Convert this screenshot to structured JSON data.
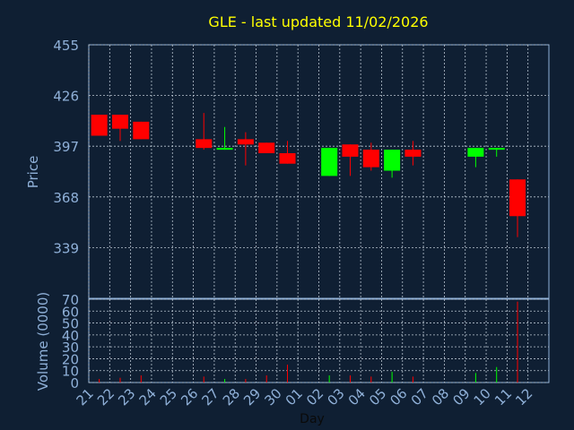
{
  "chart_data": {
    "type": "candlestick",
    "title": "GLE - last updated 11/02/2026",
    "ylabel": "Price",
    "volume_ylabel": "Volume (0000)",
    "xlabel": "Day",
    "ylim": [
      310,
      455
    ],
    "yticks": [
      455,
      426,
      397,
      368,
      339
    ],
    "volume_ylim": [
      0,
      70
    ],
    "volume_yticks": [
      0,
      10,
      20,
      30,
      40,
      50,
      60,
      70
    ],
    "x_ticks": [
      "21",
      "22",
      "23",
      "24",
      "25",
      "26",
      "27",
      "28",
      "29",
      "30",
      "01",
      "02",
      "03",
      "04",
      "05",
      "06",
      "07",
      "08",
      "09",
      "10",
      "11",
      "12"
    ],
    "grid": true,
    "colors": {
      "up": "#00ff00",
      "down": "#ff0000",
      "title": "#ffff00",
      "axis_text": "#8fb0d8",
      "grid": "#b8c4d0"
    },
    "candles": [
      {
        "day": "21",
        "open": 415,
        "close": 403,
        "high": 415,
        "low": 403,
        "volume": 3
      },
      {
        "day": "22",
        "open": 415,
        "close": 407,
        "high": 415,
        "low": 400,
        "volume": 4
      },
      {
        "day": "23",
        "open": 411,
        "close": 401,
        "high": 411,
        "low": 401,
        "volume": 6
      },
      {
        "day": "26",
        "open": 401,
        "close": 396,
        "high": 416,
        "low": 395,
        "volume": 5
      },
      {
        "day": "27",
        "open": 395,
        "close": 396,
        "high": 408,
        "low": 395,
        "volume": 3
      },
      {
        "day": "28",
        "open": 401,
        "close": 398,
        "high": 405,
        "low": 386,
        "volume": 3
      },
      {
        "day": "29",
        "open": 399,
        "close": 393,
        "high": 399,
        "low": 393,
        "volume": 6
      },
      {
        "day": "30",
        "open": 393,
        "close": 387,
        "high": 400,
        "low": 387,
        "volume": 15
      },
      {
        "day": "02",
        "open": 380,
        "close": 396,
        "high": 396,
        "low": 380,
        "volume": 6
      },
      {
        "day": "03",
        "open": 398,
        "close": 391,
        "high": 398,
        "low": 380,
        "volume": 6
      },
      {
        "day": "04",
        "open": 395,
        "close": 385,
        "high": 399,
        "low": 383,
        "volume": 5
      },
      {
        "day": "05",
        "open": 383,
        "close": 395,
        "high": 395,
        "low": 379,
        "volume": 9
      },
      {
        "day": "06",
        "open": 395,
        "close": 391,
        "high": 400,
        "low": 386,
        "volume": 5
      },
      {
        "day": "09",
        "open": 391,
        "close": 396,
        "high": 396,
        "low": 385,
        "volume": 8
      },
      {
        "day": "10",
        "open": 395,
        "close": 396,
        "high": 396,
        "low": 391,
        "volume": 13
      },
      {
        "day": "11",
        "open": 378,
        "close": 357,
        "high": 378,
        "low": 345,
        "volume": 68
      }
    ]
  }
}
